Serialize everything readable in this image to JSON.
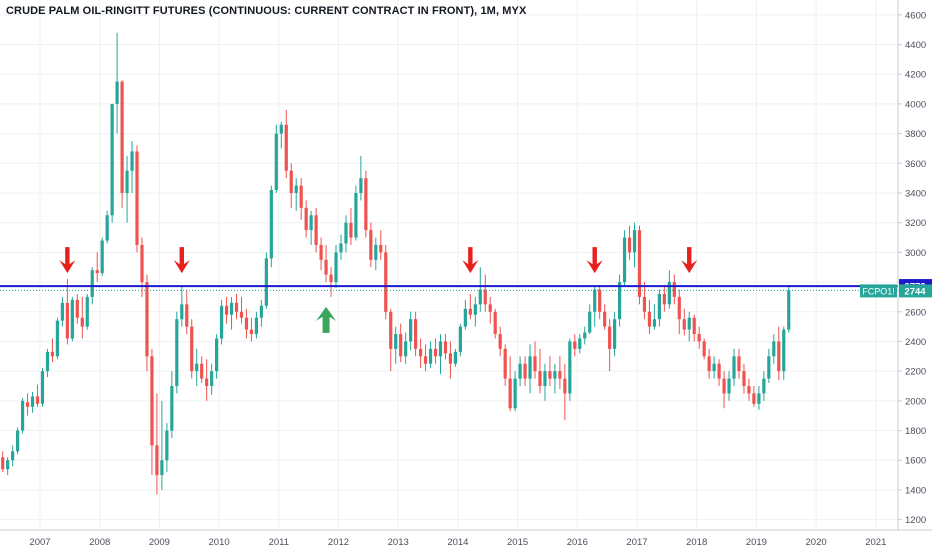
{
  "header": {
    "title": "CRUDE PALM OIL-RINGITT FUTURES (CONTINUOUS: CURRENT CONTRACT IN FRONT), 1M, MYX"
  },
  "colors": {
    "up": "#26a69a",
    "down": "#ef5350",
    "resistance": "#1a1acc",
    "last_price": "#26a69a",
    "arrow_down": "#e8201c",
    "arrow_up": "#3aa55b",
    "grid": "#eef0f3"
  },
  "chart_data": {
    "type": "candlestick",
    "symbol": "FCPO1!",
    "interval": "1M",
    "ylim": [
      1130,
      4700
    ],
    "y_ticks": [
      1200,
      1400,
      1600,
      1800,
      2000,
      2200,
      2400,
      2600,
      2800,
      3000,
      3200,
      3400,
      3600,
      3800,
      4000,
      4200,
      4400,
      4600
    ],
    "x_ticks": [
      "2007",
      "2008",
      "2009",
      "2010",
      "2011",
      "2012",
      "2013",
      "2014",
      "2015",
      "2016",
      "2017",
      "2018",
      "2019",
      "2020",
      "2021"
    ],
    "resistance": {
      "value": 2773,
      "label": "2773"
    },
    "last_price": {
      "value": 2744,
      "label": "2744",
      "symbol_label": "FCPO1!"
    },
    "arrows": [
      {
        "dir": "down",
        "date": "2007-06",
        "price": 2860
      },
      {
        "dir": "down",
        "date": "2009-05",
        "price": 2860
      },
      {
        "dir": "up",
        "date": "2011-10",
        "price": 2660
      },
      {
        "dir": "down",
        "date": "2014-03",
        "price": 2860
      },
      {
        "dir": "down",
        "date": "2016-04",
        "price": 2860
      },
      {
        "dir": "down",
        "date": "2017-11",
        "price": 2860
      }
    ],
    "start": "2006-02",
    "ohlc": [
      [
        1440,
        1500,
        1430,
        1480
      ],
      [
        1480,
        1560,
        1460,
        1500
      ],
      [
        1500,
        1640,
        1480,
        1620
      ],
      [
        1620,
        1660,
        1520,
        1540
      ],
      [
        1540,
        1620,
        1500,
        1600
      ],
      [
        1600,
        1700,
        1560,
        1660
      ],
      [
        1660,
        1820,
        1640,
        1800
      ],
      [
        1800,
        2020,
        1780,
        2000
      ],
      [
        1990,
        2050,
        1900,
        1960
      ],
      [
        1960,
        2060,
        1920,
        2030
      ],
      [
        2030,
        2110,
        1960,
        1980
      ],
      [
        1980,
        2220,
        1960,
        2200
      ],
      [
        2200,
        2350,
        2160,
        2330
      ],
      [
        2330,
        2420,
        2260,
        2300
      ],
      [
        2300,
        2560,
        2280,
        2540
      ],
      [
        2540,
        2700,
        2500,
        2660
      ],
      [
        2660,
        2820,
        2380,
        2420
      ],
      [
        2420,
        2700,
        2400,
        2680
      ],
      [
        2680,
        2720,
        2520,
        2560
      ],
      [
        2560,
        2700,
        2420,
        2500
      ],
      [
        2500,
        2720,
        2480,
        2700
      ],
      [
        2700,
        2900,
        2650,
        2880
      ],
      [
        2880,
        3000,
        2800,
        2860
      ],
      [
        2860,
        3100,
        2840,
        3080
      ],
      [
        3080,
        3280,
        3060,
        3250
      ],
      [
        3250,
        4000,
        3200,
        4000
      ],
      [
        4000,
        4480,
        3800,
        4150
      ],
      [
        4150,
        4160,
        3300,
        3400
      ],
      [
        3400,
        3650,
        3200,
        3550
      ],
      [
        3550,
        3750,
        3400,
        3680
      ],
      [
        3680,
        3720,
        3000,
        3050
      ],
      [
        3050,
        3100,
        2700,
        2800
      ],
      [
        2800,
        2850,
        2200,
        2300
      ],
      [
        2300,
        2350,
        1500,
        1700
      ],
      [
        1700,
        2050,
        1370,
        1500
      ],
      [
        1500,
        2000,
        1400,
        1600
      ],
      [
        1600,
        1850,
        1520,
        1800
      ],
      [
        1800,
        2200,
        1750,
        2100
      ],
      [
        2100,
        2600,
        2050,
        2550
      ],
      [
        2550,
        2780,
        2500,
        2650
      ],
      [
        2650,
        2750,
        2450,
        2500
      ],
      [
        2500,
        2550,
        2150,
        2200
      ],
      [
        2200,
        2350,
        2100,
        2250
      ],
      [
        2250,
        2300,
        2120,
        2150
      ],
      [
        2150,
        2280,
        2000,
        2100
      ],
      [
        2100,
        2250,
        2040,
        2200
      ],
      [
        2200,
        2450,
        2150,
        2420
      ],
      [
        2420,
        2680,
        2380,
        2640
      ],
      [
        2640,
        2700,
        2520,
        2580
      ],
      [
        2580,
        2700,
        2480,
        2660
      ],
      [
        2660,
        2720,
        2550,
        2600
      ],
      [
        2600,
        2700,
        2520,
        2560
      ],
      [
        2560,
        2620,
        2420,
        2480
      ],
      [
        2480,
        2560,
        2400,
        2450
      ],
      [
        2450,
        2600,
        2420,
        2560
      ],
      [
        2560,
        2680,
        2500,
        2640
      ],
      [
        2640,
        3000,
        2620,
        2960
      ],
      [
        2960,
        3450,
        2900,
        3420
      ],
      [
        3420,
        3860,
        3400,
        3800
      ],
      [
        3800,
        3880,
        3700,
        3860
      ],
      [
        3860,
        3960,
        3500,
        3550
      ],
      [
        3550,
        3600,
        3300,
        3400
      ],
      [
        3400,
        3500,
        3280,
        3450
      ],
      [
        3450,
        3500,
        3220,
        3300
      ],
      [
        3300,
        3350,
        3100,
        3150
      ],
      [
        3150,
        3280,
        3050,
        3250
      ],
      [
        3250,
        3300,
        3000,
        3050
      ],
      [
        3050,
        3100,
        2880,
        2950
      ],
      [
        2950,
        3050,
        2800,
        2850
      ],
      [
        2850,
        2900,
        2700,
        2800
      ],
      [
        2800,
        3050,
        2760,
        3000
      ],
      [
        3000,
        3120,
        2950,
        3060
      ],
      [
        3060,
        3250,
        3000,
        3200
      ],
      [
        3200,
        3300,
        3050,
        3100
      ],
      [
        3100,
        3450,
        3080,
        3400
      ],
      [
        3400,
        3650,
        3350,
        3500
      ],
      [
        3500,
        3550,
        3100,
        3150
      ],
      [
        3150,
        3200,
        2900,
        2950
      ],
      [
        2950,
        3100,
        2880,
        3050
      ],
      [
        3050,
        3150,
        2950,
        3000
      ],
      [
        3000,
        3050,
        2550,
        2600
      ],
      [
        2600,
        2620,
        2200,
        2350
      ],
      [
        2350,
        2500,
        2250,
        2450
      ],
      [
        2450,
        2520,
        2260,
        2300
      ],
      [
        2300,
        2460,
        2250,
        2400
      ],
      [
        2400,
        2600,
        2340,
        2550
      ],
      [
        2550,
        2600,
        2300,
        2350
      ],
      [
        2350,
        2420,
        2220,
        2300
      ],
      [
        2300,
        2380,
        2200,
        2250
      ],
      [
        2250,
        2400,
        2220,
        2350
      ],
      [
        2350,
        2420,
        2250,
        2300
      ],
      [
        2300,
        2450,
        2180,
        2400
      ],
      [
        2400,
        2450,
        2280,
        2320
      ],
      [
        2320,
        2400,
        2150,
        2250
      ],
      [
        2250,
        2350,
        2230,
        2330
      ],
      [
        2330,
        2520,
        2300,
        2500
      ],
      [
        2500,
        2680,
        2480,
        2620
      ],
      [
        2620,
        2720,
        2550,
        2580
      ],
      [
        2580,
        2700,
        2500,
        2650
      ],
      [
        2650,
        2900,
        2600,
        2750
      ],
      [
        2750,
        2850,
        2600,
        2650
      ],
      [
        2650,
        2700,
        2520,
        2600
      ],
      [
        2600,
        2620,
        2420,
        2450
      ],
      [
        2450,
        2500,
        2300,
        2350
      ],
      [
        2350,
        2380,
        2100,
        2150
      ],
      [
        2150,
        2300,
        1930,
        1950
      ],
      [
        1950,
        2200,
        1930,
        2150
      ],
      [
        2150,
        2300,
        2100,
        2250
      ],
      [
        2250,
        2300,
        2100,
        2150
      ],
      [
        2150,
        2380,
        2050,
        2300
      ],
      [
        2300,
        2400,
        2150,
        2200
      ],
      [
        2200,
        2350,
        2050,
        2100
      ],
      [
        2100,
        2250,
        2000,
        2200
      ],
      [
        2200,
        2300,
        2100,
        2150
      ],
      [
        2150,
        2250,
        2050,
        2200
      ],
      [
        2200,
        2300,
        2080,
        2150
      ],
      [
        2150,
        2250,
        1870,
        2050
      ],
      [
        2050,
        2420,
        2000,
        2400
      ],
      [
        2400,
        2450,
        2300,
        2350
      ],
      [
        2350,
        2450,
        2320,
        2420
      ],
      [
        2420,
        2500,
        2380,
        2460
      ],
      [
        2460,
        2650,
        2450,
        2600
      ],
      [
        2600,
        2780,
        2500,
        2750
      ],
      [
        2750,
        2780,
        2550,
        2600
      ],
      [
        2600,
        2650,
        2480,
        2500
      ],
      [
        2500,
        2550,
        2200,
        2350
      ],
      [
        2350,
        2600,
        2300,
        2550
      ],
      [
        2550,
        2850,
        2500,
        2800
      ],
      [
        2800,
        3150,
        2780,
        3100
      ],
      [
        3100,
        3180,
        2950,
        3000
      ],
      [
        3000,
        3200,
        2900,
        3150
      ],
      [
        3150,
        3180,
        2650,
        2700
      ],
      [
        2700,
        2800,
        2550,
        2600
      ],
      [
        2600,
        2680,
        2450,
        2500
      ],
      [
        2500,
        2650,
        2480,
        2550
      ],
      [
        2550,
        2750,
        2500,
        2720
      ],
      [
        2720,
        2780,
        2600,
        2650
      ],
      [
        2650,
        2880,
        2620,
        2800
      ],
      [
        2800,
        2850,
        2650,
        2700
      ],
      [
        2700,
        2750,
        2450,
        2550
      ],
      [
        2550,
        2620,
        2440,
        2480
      ],
      [
        2480,
        2600,
        2400,
        2560
      ],
      [
        2560,
        2580,
        2400,
        2450
      ],
      [
        2450,
        2500,
        2350,
        2400
      ],
      [
        2400,
        2420,
        2280,
        2300
      ],
      [
        2300,
        2350,
        2150,
        2200
      ],
      [
        2200,
        2300,
        2150,
        2250
      ],
      [
        2250,
        2280,
        2100,
        2150
      ],
      [
        2150,
        2200,
        1950,
        2050
      ],
      [
        2050,
        2200,
        2000,
        2150
      ],
      [
        2150,
        2350,
        2100,
        2300
      ],
      [
        2300,
        2350,
        2150,
        2200
      ],
      [
        2200,
        2250,
        2050,
        2100
      ],
      [
        2100,
        2150,
        2000,
        2050
      ],
      [
        2050,
        2100,
        1960,
        1980
      ],
      [
        1980,
        2100,
        1940,
        2050
      ],
      [
        2050,
        2200,
        2000,
        2150
      ],
      [
        2150,
        2350,
        2120,
        2300
      ],
      [
        2300,
        2450,
        2250,
        2400
      ],
      [
        2400,
        2500,
        2140,
        2200
      ],
      [
        2200,
        2500,
        2140,
        2480
      ],
      [
        2480,
        2780,
        2460,
        2744
      ]
    ]
  }
}
